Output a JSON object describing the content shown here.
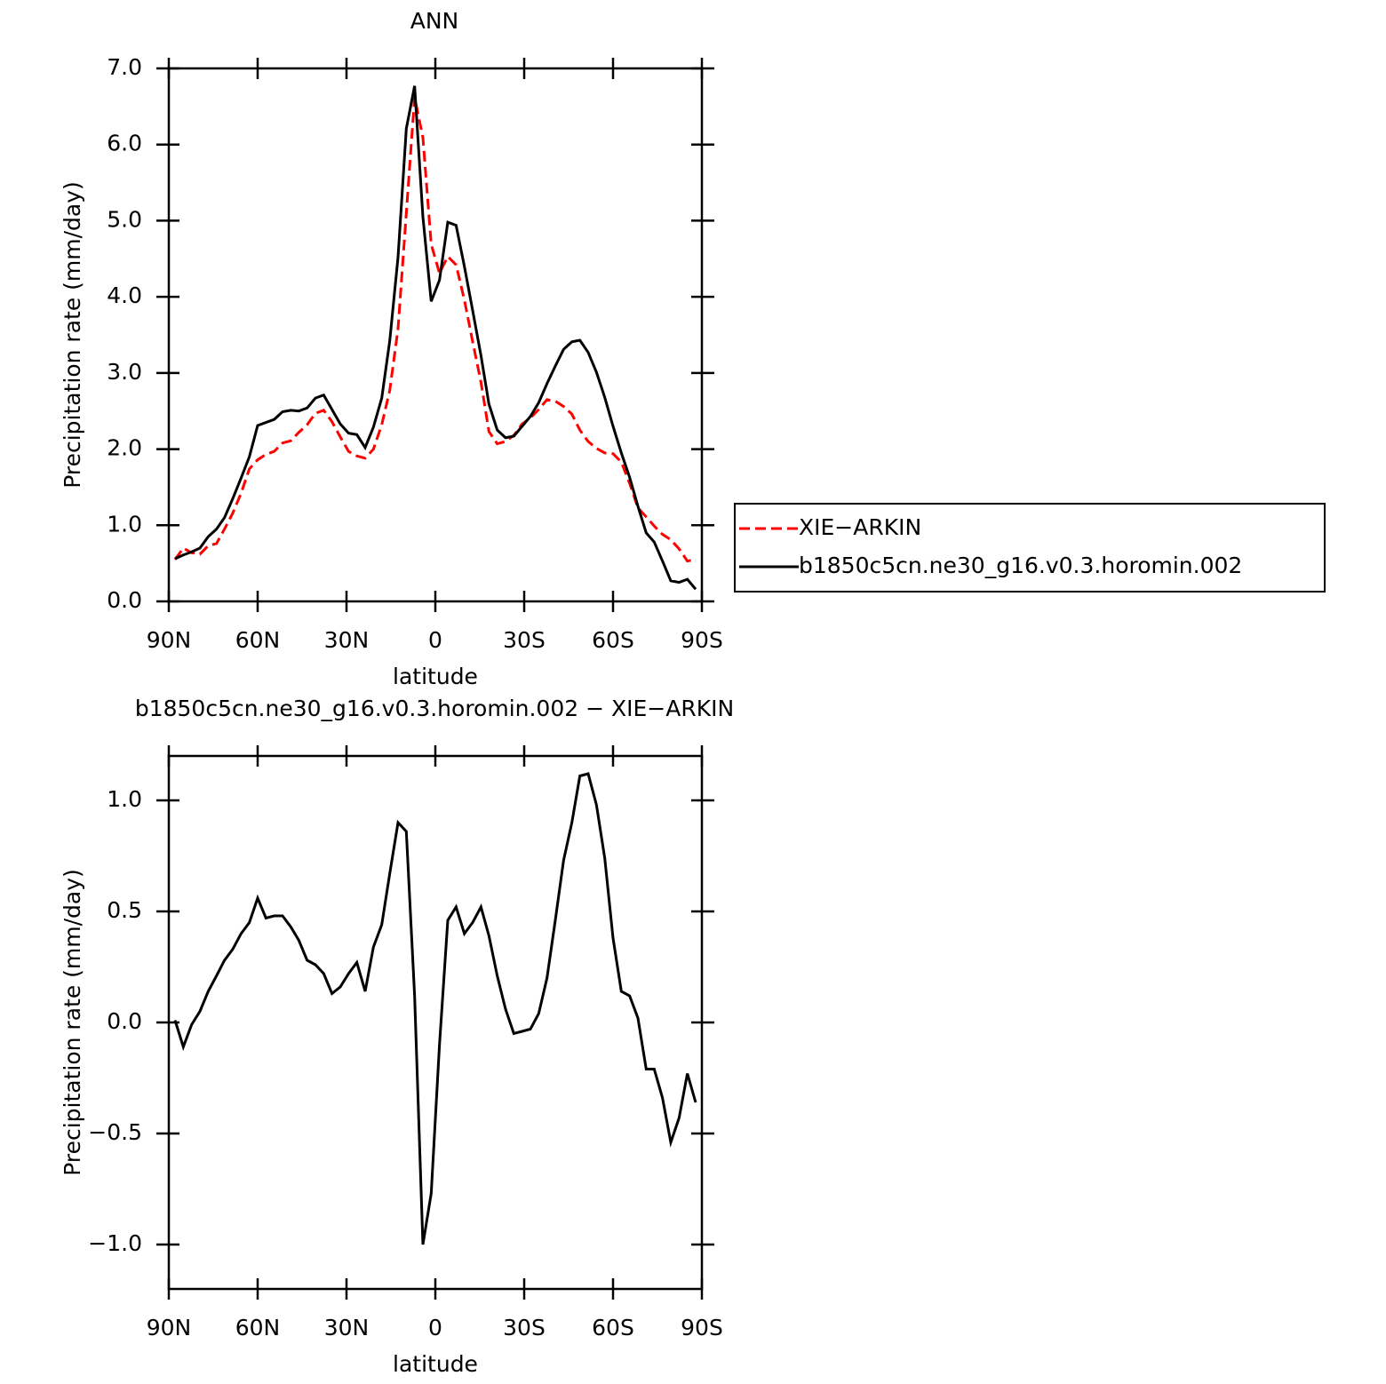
{
  "chart_data": [
    {
      "type": "line",
      "title": "ANN",
      "xlabel": "latitude",
      "ylabel": "Precipitation rate (mm/day)",
      "x": [
        87.9,
        85.1,
        82.3,
        79.5,
        76.7,
        73.9,
        71.2,
        68.4,
        65.6,
        62.8,
        60.0,
        57.2,
        54.4,
        51.6,
        48.8,
        46.1,
        43.3,
        40.5,
        37.7,
        34.9,
        32.1,
        29.3,
        26.5,
        23.7,
        20.9,
        18.1,
        15.4,
        12.6,
        9.8,
        7.0,
        4.2,
        1.4,
        -1.4,
        -4.2,
        -7.0,
        -9.8,
        -12.6,
        -15.4,
        -18.1,
        -20.9,
        -23.7,
        -26.5,
        -29.3,
        -32.1,
        -34.9,
        -37.7,
        -40.5,
        -43.3,
        -46.1,
        -48.8,
        -51.6,
        -54.4,
        -57.2,
        -60.0,
        -62.8,
        -65.6,
        -68.4,
        -71.2,
        -73.9,
        -76.7,
        -79.5,
        -82.3,
        -85.1,
        -87.9
      ],
      "series": [
        {
          "name": "XIE−ARKIN",
          "color": "#ff0000",
          "line_style": "dashed",
          "values": [
            0.55,
            0.7,
            0.64,
            0.62,
            0.73,
            0.76,
            0.95,
            1.16,
            1.42,
            1.74,
            1.86,
            1.93,
            1.97,
            2.08,
            2.11,
            2.22,
            2.32,
            2.47,
            2.51,
            2.36,
            2.16,
            1.97,
            1.91,
            1.88,
            2.0,
            2.32,
            2.77,
            3.58,
            5.1,
            6.62,
            6.09,
            4.69,
            4.31,
            4.53,
            4.42,
            3.96,
            3.41,
            2.88,
            2.23,
            2.07,
            2.1,
            2.18,
            2.33,
            2.41,
            2.52,
            2.65,
            2.63,
            2.56,
            2.46,
            2.25,
            2.1,
            2.01,
            1.95,
            1.94,
            1.83,
            1.55,
            1.23,
            1.11,
            0.99,
            0.88,
            0.81,
            0.69,
            0.53,
            0.55
          ]
        },
        {
          "name": "b1850c5cn.ne30_g16.v0.3.horomin.002",
          "color": "#000000",
          "line_style": "solid",
          "values": [
            0.56,
            0.61,
            0.65,
            0.7,
            0.85,
            0.95,
            1.1,
            1.35,
            1.62,
            1.9,
            2.31,
            2.35,
            2.39,
            2.49,
            2.51,
            2.5,
            2.54,
            2.67,
            2.71,
            2.52,
            2.33,
            2.21,
            2.19,
            2.02,
            2.29,
            2.67,
            3.42,
            4.52,
            6.21,
            6.77,
            5.05,
            3.94,
            4.22,
            4.98,
            4.94,
            4.4,
            3.82,
            3.23,
            2.59,
            2.25,
            2.15,
            2.17,
            2.3,
            2.43,
            2.61,
            2.86,
            3.09,
            3.31,
            3.41,
            3.43,
            3.27,
            3.01,
            2.68,
            2.3,
            1.95,
            1.63,
            1.25,
            0.9,
            0.78,
            0.53,
            0.27,
            0.25,
            0.29,
            0.16
          ]
        }
      ],
      "xlim": [
        90,
        -90
      ],
      "xticks": [
        {
          "value": 90,
          "label": "90N"
        },
        {
          "value": 60,
          "label": "60N"
        },
        {
          "value": 30,
          "label": "30N"
        },
        0,
        {
          "value": -30,
          "label": "30S"
        },
        {
          "value": -60,
          "label": "60S"
        },
        {
          "value": -90,
          "label": "90S"
        }
      ],
      "ylim": [
        0,
        7
      ],
      "yticks": [
        {
          "value": 0,
          "label": "0.0"
        },
        {
          "value": 1,
          "label": "1.0"
        },
        {
          "value": 2,
          "label": "2.0"
        },
        {
          "value": 3,
          "label": "3.0"
        },
        {
          "value": 4,
          "label": "4.0"
        },
        {
          "value": 5,
          "label": "5.0"
        },
        {
          "value": 6,
          "label": "6.0"
        },
        {
          "value": 7,
          "label": "7.0"
        }
      ],
      "legend": "right"
    },
    {
      "type": "line",
      "title": "b1850c5cn.ne30_g16.v0.3.horomin.002 − XIE−ARKIN",
      "xlabel": "latitude",
      "ylabel": "Precipitation rate (mm/day)",
      "x": [
        87.9,
        85.1,
        82.3,
        79.5,
        76.7,
        73.9,
        71.2,
        68.4,
        65.6,
        62.8,
        60.0,
        57.2,
        54.4,
        51.6,
        48.8,
        46.1,
        43.3,
        40.5,
        37.7,
        34.9,
        32.1,
        29.3,
        26.5,
        23.7,
        20.9,
        18.1,
        15.4,
        12.6,
        9.8,
        7.0,
        4.2,
        1.4,
        -1.4,
        -4.2,
        -7.0,
        -9.8,
        -12.6,
        -15.4,
        -18.1,
        -20.9,
        -23.7,
        -26.5,
        -29.3,
        -32.1,
        -34.9,
        -37.7,
        -40.5,
        -43.3,
        -46.1,
        -48.8,
        -51.6,
        -54.4,
        -57.2,
        -60.0,
        -62.8,
        -65.6,
        -68.4,
        -71.2,
        -73.9,
        -76.7,
        -79.5,
        -82.3,
        -85.1,
        -87.9
      ],
      "series": [
        {
          "color": "#000000",
          "line_style": "solid",
          "values": [
            0.01,
            -0.11,
            -0.01,
            0.05,
            0.14,
            0.21,
            0.28,
            0.33,
            0.4,
            0.45,
            0.56,
            0.47,
            0.48,
            0.48,
            0.43,
            0.37,
            0.28,
            0.26,
            0.22,
            0.13,
            0.16,
            0.22,
            0.27,
            0.14,
            0.34,
            0.44,
            0.67,
            0.9,
            0.86,
            0.12,
            -1.0,
            -0.77,
            -0.1,
            0.46,
            0.52,
            0.4,
            0.45,
            0.52,
            0.39,
            0.21,
            0.06,
            -0.05,
            -0.04,
            -0.03,
            0.04,
            0.2,
            0.46,
            0.73,
            0.9,
            1.11,
            1.12,
            0.98,
            0.74,
            0.38,
            0.14,
            0.12,
            0.02,
            -0.21,
            -0.21,
            -0.34,
            -0.54,
            -0.43,
            -0.23,
            -0.36
          ]
        }
      ],
      "xlim": [
        90,
        -90
      ],
      "xticks": [
        {
          "value": 90,
          "label": "90N"
        },
        {
          "value": 60,
          "label": "60N"
        },
        {
          "value": 30,
          "label": "30N"
        },
        0,
        {
          "value": -30,
          "label": "30S"
        },
        {
          "value": -60,
          "label": "60S"
        },
        {
          "value": -90,
          "label": "90S"
        }
      ],
      "ylim": [
        -1.2,
        1.2
      ],
      "yticks": [
        {
          "value": -1,
          "label": "−1.0"
        },
        {
          "value": -0.5,
          "label": "−0.5"
        },
        {
          "value": 0,
          "label": "0.0"
        },
        {
          "value": 0.5,
          "label": "0.5"
        },
        {
          "value": 1,
          "label": "1.0"
        }
      ]
    }
  ]
}
